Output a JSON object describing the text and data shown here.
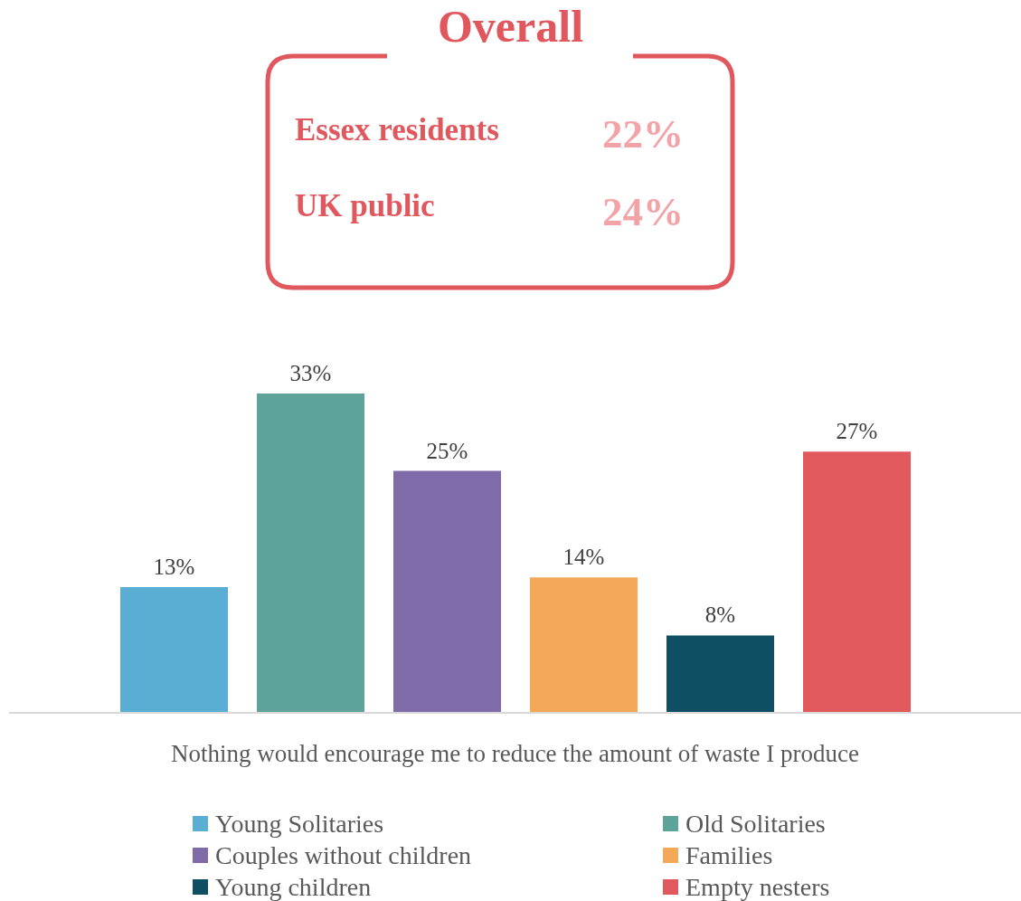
{
  "chart_data": {
    "type": "bar",
    "title": "Overall",
    "annotations": [
      "Essex residents",
      "22%",
      "UK public",
      "24%"
    ],
    "xlabel": "Nothing would encourage me to reduce the amount of waste I produce",
    "categories": [
      null
    ],
    "series": [
      {
        "name": "Young Solitaries",
        "color": "#5aaed3",
        "values": [
          13
        ],
        "value_labels": [
          "13%"
        ]
      },
      {
        "name": "Old Solitaries",
        "color": "#5ea39a",
        "values": [
          33
        ],
        "value_labels": [
          "33%"
        ]
      },
      {
        "name": "Couples without children",
        "color": "#7f6ba8",
        "values": [
          25
        ],
        "value_labels": [
          "25%"
        ]
      },
      {
        "name": "Families",
        "color": "#f4a958",
        "values": [
          14
        ],
        "value_labels": [
          "14%"
        ]
      },
      {
        "name": "Young children",
        "color": "#0e4f63",
        "values": [
          8
        ],
        "value_labels": [
          "8%"
        ]
      },
      {
        "name": "Empty nesters",
        "color": "#e2595d",
        "values": [
          27
        ],
        "value_labels": [
          "27%"
        ]
      }
    ],
    "grid": false,
    "legend": "bottom"
  }
}
